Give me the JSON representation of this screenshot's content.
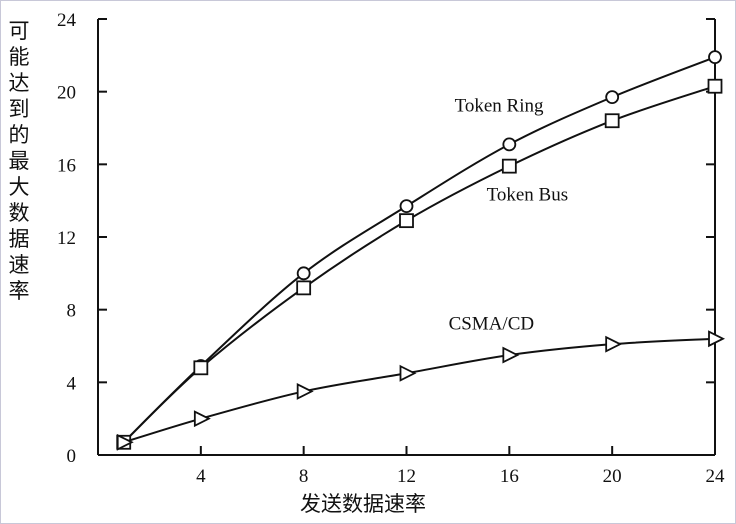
{
  "chart_data": {
    "type": "line",
    "ylabel": "可能达到的最大数据速率",
    "xlabel": "发送数据速率",
    "xlim": [
      1,
      24
    ],
    "ylim": [
      0,
      24
    ],
    "x_ticks": [
      4,
      8,
      12,
      16,
      20,
      24
    ],
    "y_ticks": [
      0,
      4,
      8,
      12,
      16,
      20,
      24
    ],
    "grid": false,
    "series": [
      {
        "name": "Token Ring",
        "marker": "circle",
        "x": [
          1,
          4,
          8,
          12,
          16,
          20,
          24
        ],
        "y": [
          0.7,
          4.9,
          10.0,
          13.7,
          17.1,
          19.7,
          21.9
        ]
      },
      {
        "name": "Token Bus",
        "marker": "square",
        "x": [
          1,
          4,
          8,
          12,
          16,
          20,
          24
        ],
        "y": [
          0.7,
          4.8,
          9.2,
          12.9,
          15.9,
          18.4,
          20.3
        ]
      },
      {
        "name": "CSMA/CD",
        "marker": "triangle-right",
        "x": [
          1,
          4,
          8,
          12,
          16,
          20,
          24
        ],
        "y": [
          0.7,
          2.0,
          3.5,
          4.5,
          5.5,
          6.1,
          6.4
        ]
      }
    ]
  }
}
